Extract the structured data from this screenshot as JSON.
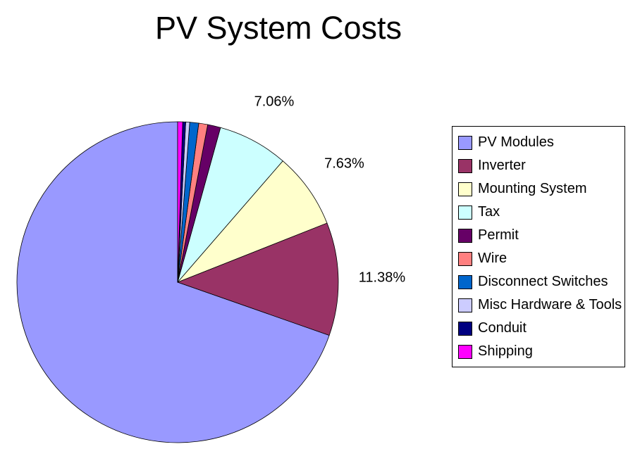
{
  "chart_data": {
    "type": "pie",
    "title": "PV System Costs",
    "categories": [
      "PV Modules",
      "Inverter",
      "Mounting System",
      "Tax",
      "Permit",
      "Wire",
      "Disconnect Switches",
      "Misc Hardware & Tools",
      "Conduit",
      "Shipping"
    ],
    "values": [
      69.63,
      11.38,
      7.63,
      7.06,
      1.3,
      0.9,
      0.9,
      0.4,
      0.3,
      0.5
    ],
    "value_labels": [
      null,
      "11.38%",
      "7.63%",
      "7.06%",
      null,
      null,
      null,
      null,
      null,
      null
    ],
    "colors": [
      "#9999ff",
      "#993366",
      "#ffffcc",
      "#ccffff",
      "#660066",
      "#ff8080",
      "#0066cc",
      "#ccccff",
      "#000080",
      "#ff00ff"
    ],
    "legend": "right"
  }
}
